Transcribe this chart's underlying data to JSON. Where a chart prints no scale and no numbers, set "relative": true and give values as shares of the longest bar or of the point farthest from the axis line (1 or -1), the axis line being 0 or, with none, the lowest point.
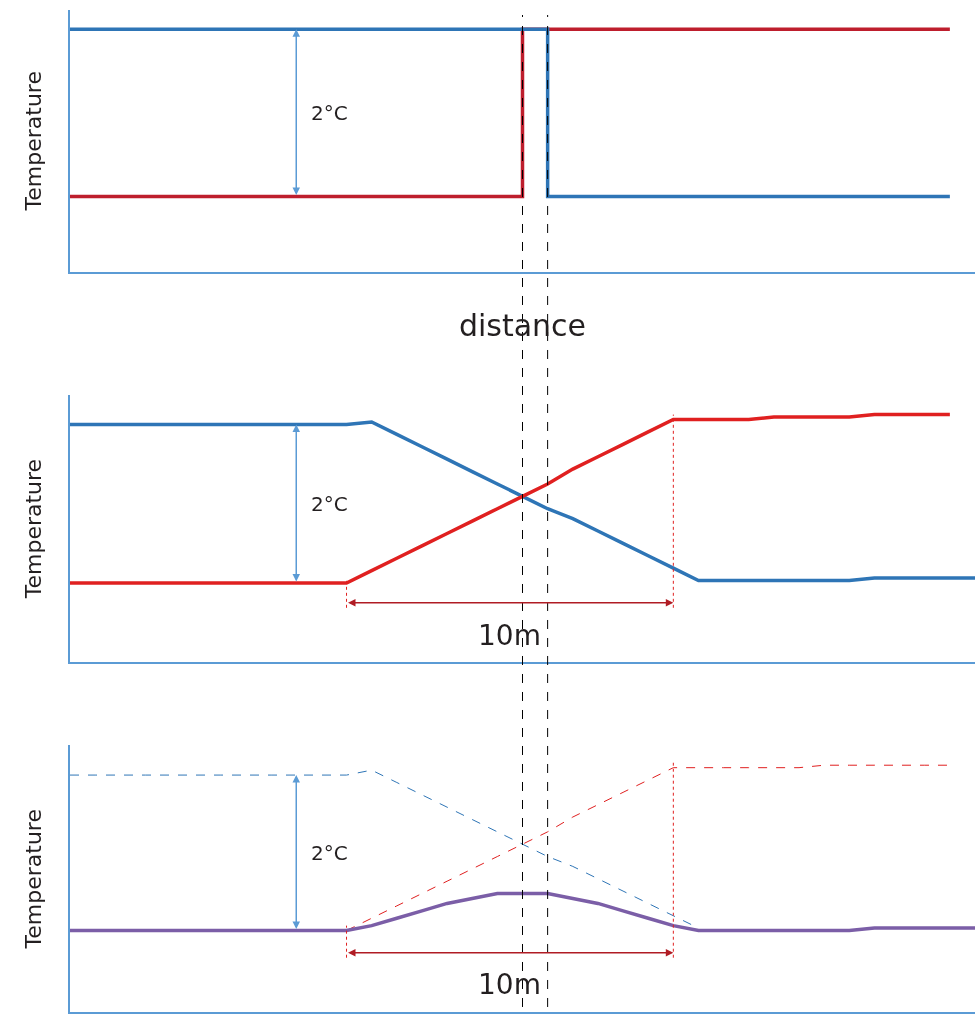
{
  "chart_data": [
    {
      "type": "line",
      "relative": true,
      "xlabel": "distance",
      "ylabel": "Temperature",
      "categories": [
        null,
        null,
        null,
        null,
        null,
        null,
        null,
        null,
        null,
        null,
        null,
        null,
        null,
        null,
        null,
        null,
        null,
        null,
        null,
        null,
        null,
        null,
        null,
        null,
        null,
        null,
        null,
        null,
        null,
        null,
        null,
        null,
        null,
        null,
        null,
        null,
        null
      ],
      "series": [
        {
          "type": "step",
          "color": "#be1e2d",
          "values": [
            0.31,
            0.31,
            0.31,
            0.31,
            0.31,
            0.31,
            0.31,
            0.31,
            0.31,
            0.31,
            0.31,
            0.31,
            0.31,
            0.31,
            0.31,
            0.31,
            0.31,
            0.31,
            1.0,
            1.0,
            1.0,
            1.0,
            1.0,
            1.0,
            1.0,
            1.0,
            1.0,
            1.0,
            1.0,
            1.0,
            1.0,
            1.0,
            1.0,
            1.0,
            1.0,
            1.0,
            null
          ]
        },
        {
          "type": "step",
          "color": "#2e75b6",
          "values": [
            1.0,
            1.0,
            1.0,
            1.0,
            1.0,
            1.0,
            1.0,
            1.0,
            1.0,
            1.0,
            1.0,
            1.0,
            1.0,
            1.0,
            1.0,
            1.0,
            1.0,
            1.0,
            1.0,
            0.31,
            0.31,
            0.31,
            0.31,
            0.31,
            0.31,
            0.31,
            0.31,
            0.31,
            0.31,
            0.31,
            0.31,
            0.31,
            0.31,
            0.31,
            0.31,
            0.31,
            null
          ]
        }
      ],
      "annotations": [
        "2°C"
      ]
    },
    {
      "type": "line",
      "relative": true,
      "ylabel": "Temperature",
      "categories": [
        null,
        null,
        null,
        null,
        null,
        null,
        null,
        null,
        null,
        null,
        null,
        null,
        null,
        null,
        null,
        null,
        null,
        null,
        null,
        null,
        null,
        null,
        null,
        null,
        null,
        null,
        null,
        null,
        null,
        null,
        null,
        null,
        null,
        null,
        null,
        null,
        null
      ],
      "series": [
        {
          "color": "#2e75b6",
          "values": [
            0.96,
            0.96,
            0.96,
            0.96,
            0.96,
            0.96,
            0.96,
            0.96,
            0.96,
            0.96,
            0.96,
            0.96,
            0.97,
            0.92,
            0.87,
            0.82,
            0.77,
            0.72,
            0.67,
            0.62,
            0.58,
            0.53,
            0.48,
            0.43,
            0.38,
            0.33,
            0.33,
            0.33,
            0.33,
            0.33,
            0.33,
            0.33,
            0.34,
            0.34,
            0.34,
            0.34,
            0.34
          ]
        },
        {
          "color": "#e02020",
          "values": [
            0.32,
            0.32,
            0.32,
            0.32,
            0.32,
            0.32,
            0.32,
            0.32,
            0.32,
            0.32,
            0.32,
            0.32,
            0.37,
            0.42,
            0.47,
            0.52,
            0.57,
            0.62,
            0.67,
            0.72,
            0.78,
            0.83,
            0.88,
            0.93,
            0.98,
            0.98,
            0.98,
            0.98,
            0.99,
            0.99,
            0.99,
            0.99,
            1.0,
            1.0,
            1.0,
            1.0,
            null
          ]
        }
      ],
      "annotations": [
        "2°C",
        "10m"
      ]
    },
    {
      "type": "line",
      "relative": true,
      "ylabel": "Temperature",
      "categories": [
        null,
        null,
        null,
        null,
        null,
        null,
        null,
        null,
        null,
        null,
        null,
        null,
        null,
        null,
        null,
        null,
        null,
        null,
        null,
        null,
        null,
        null,
        null,
        null,
        null,
        null,
        null,
        null,
        null,
        null,
        null,
        null,
        null,
        null,
        null,
        null,
        null
      ],
      "series": [
        {
          "color": "#2e75b6",
          "line_style": "dashed",
          "values": [
            0.96,
            0.96,
            0.96,
            0.96,
            0.96,
            0.96,
            0.96,
            0.96,
            0.96,
            0.96,
            0.96,
            0.96,
            0.98,
            0.93,
            0.88,
            0.83,
            0.78,
            0.73,
            0.68,
            0.63,
            0.59,
            0.54,
            0.49,
            0.44,
            0.39,
            0.34,
            null,
            null,
            null,
            null,
            null,
            null,
            null,
            null,
            null,
            null,
            null
          ]
        },
        {
          "color": "#e02020",
          "line_style": "dashed",
          "values": [
            null,
            null,
            null,
            null,
            null,
            null,
            null,
            null,
            null,
            null,
            null,
            0.33,
            0.38,
            0.43,
            0.48,
            0.53,
            0.58,
            0.63,
            0.68,
            0.73,
            0.79,
            0.84,
            0.89,
            0.94,
            0.99,
            0.99,
            0.99,
            0.99,
            0.99,
            0.99,
            1.0,
            1.0,
            1.0,
            1.0,
            1.0,
            1.0,
            null
          ]
        },
        {
          "color": "#7b5ea7",
          "values": [
            0.33,
            0.33,
            0.33,
            0.33,
            0.33,
            0.33,
            0.33,
            0.33,
            0.33,
            0.33,
            0.33,
            0.33,
            0.35,
            0.38,
            0.41,
            0.44,
            0.46,
            0.48,
            0.48,
            0.48,
            0.46,
            0.44,
            0.41,
            0.38,
            0.35,
            0.33,
            0.33,
            0.33,
            0.33,
            0.33,
            0.33,
            0.33,
            0.34,
            0.34,
            0.34,
            0.34,
            0.34
          ]
        }
      ],
      "annotations": [
        "2°C",
        "10m"
      ]
    }
  ]
}
